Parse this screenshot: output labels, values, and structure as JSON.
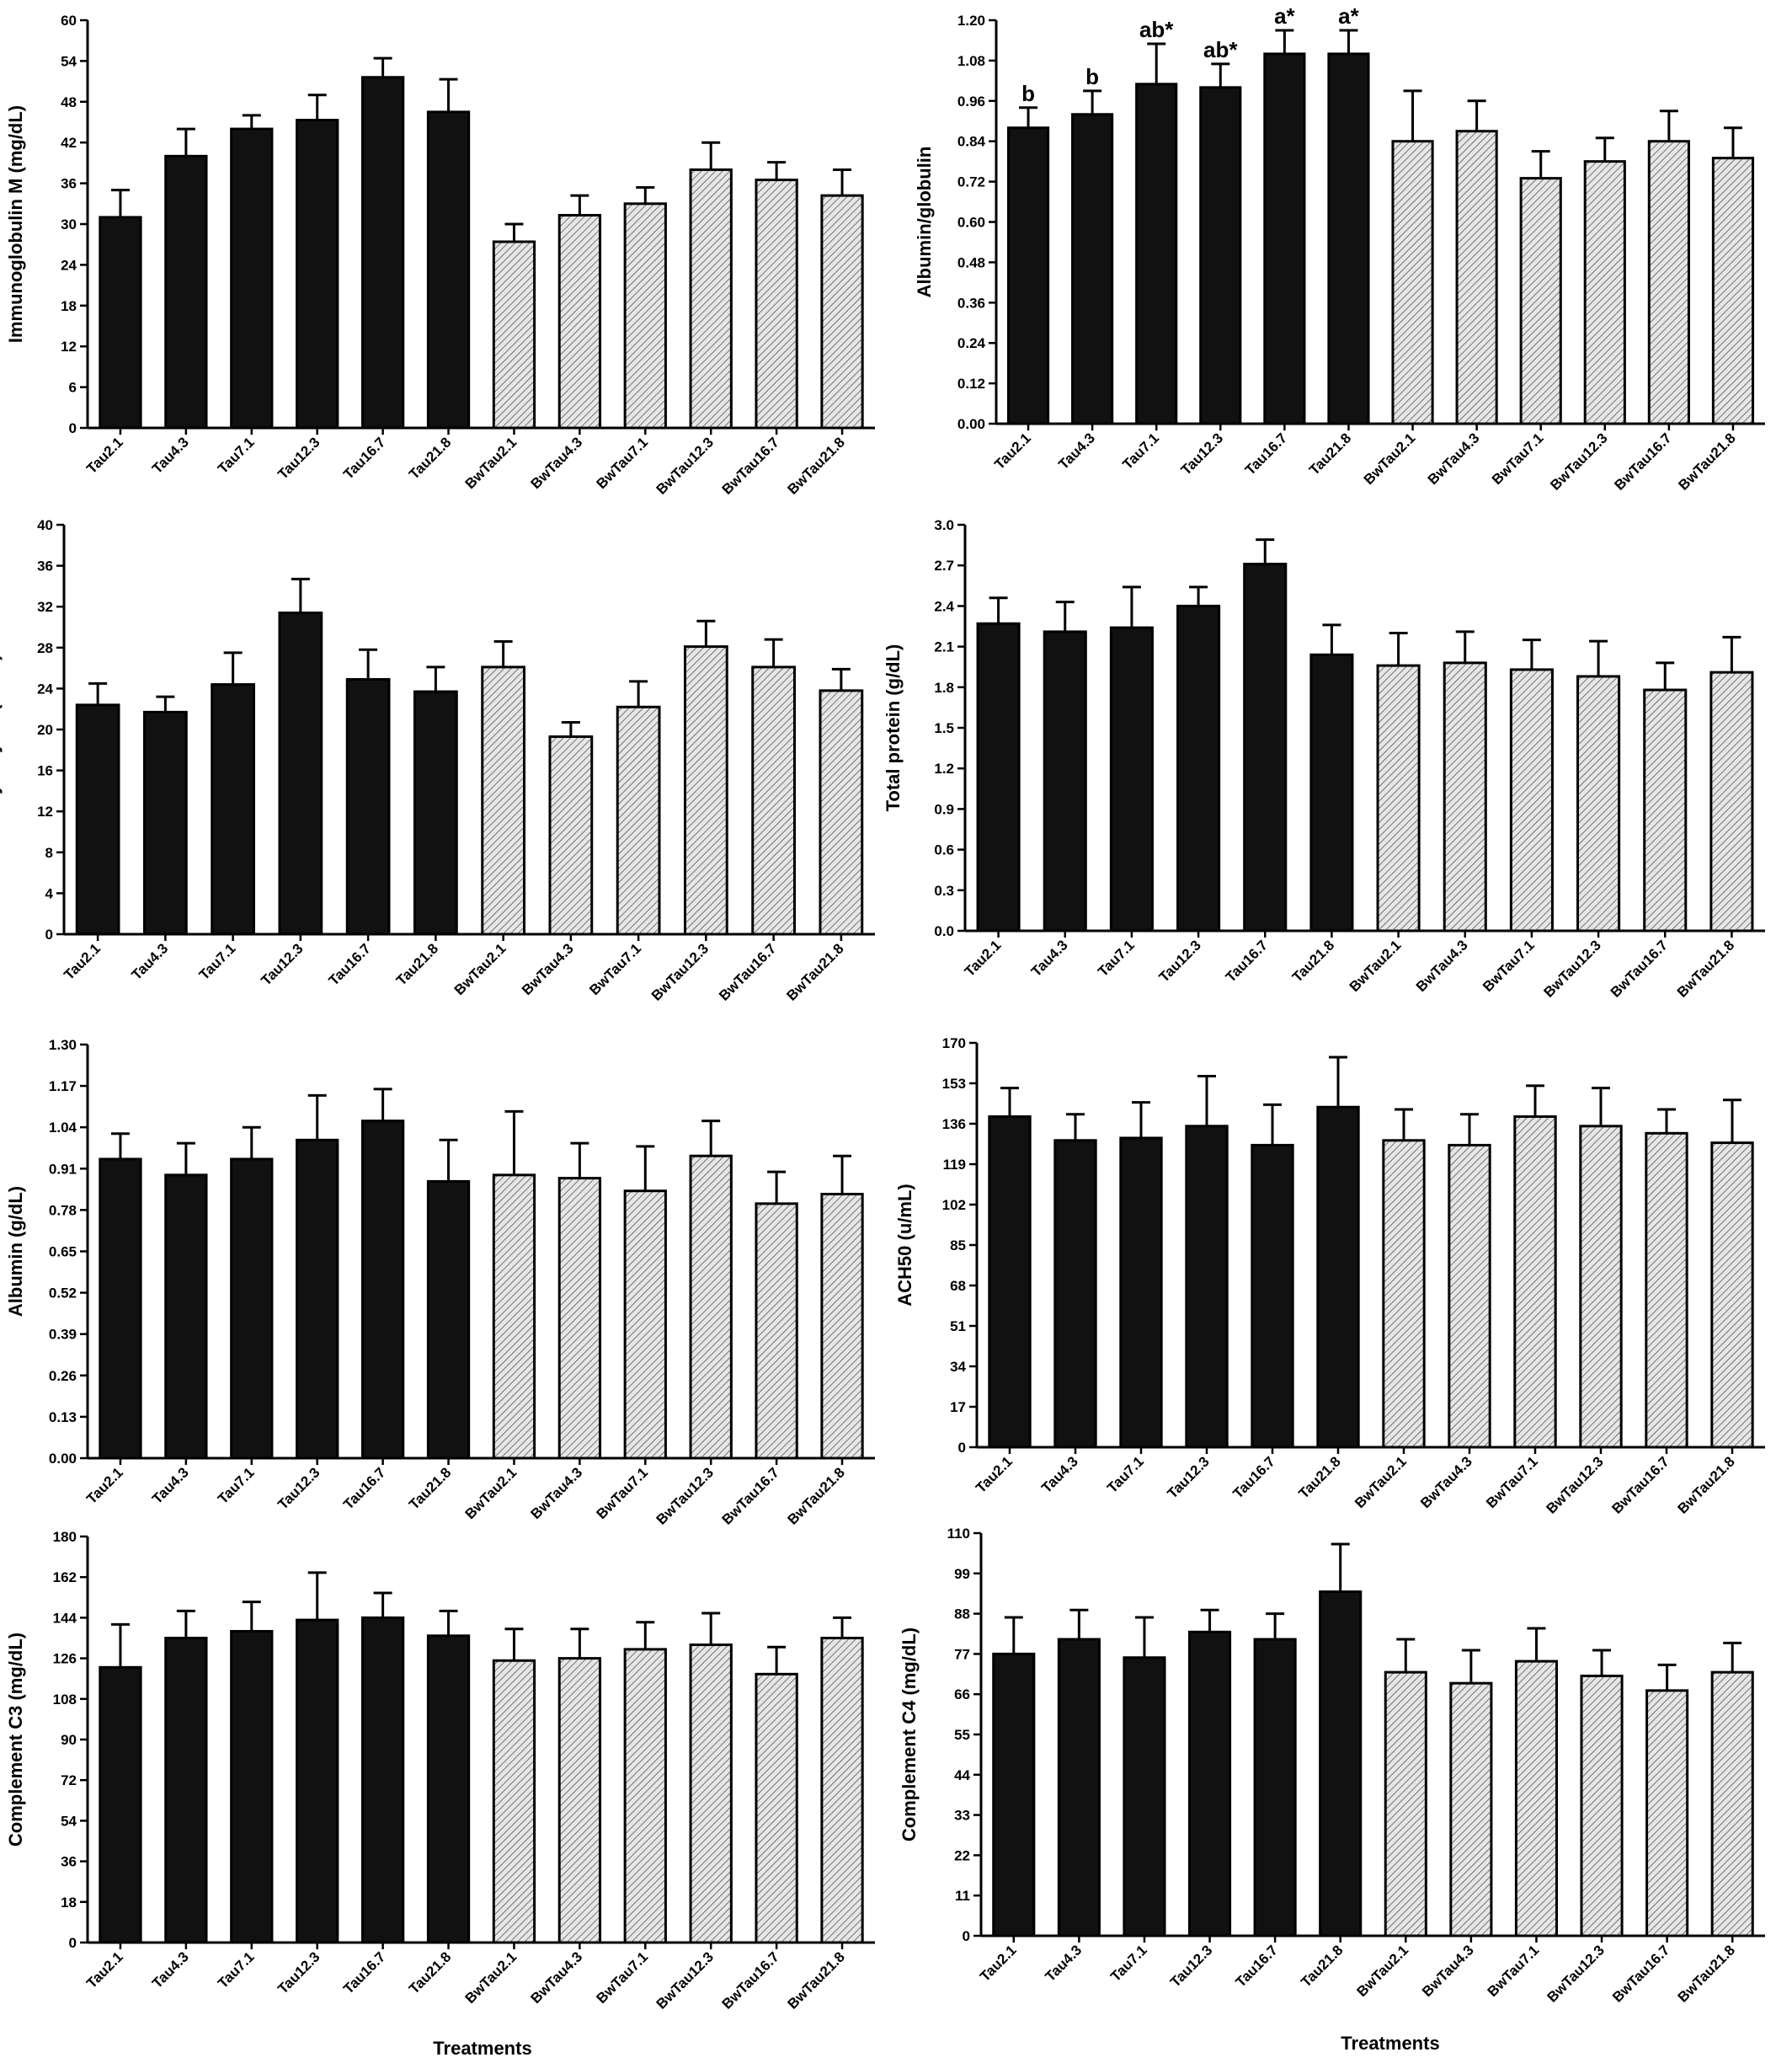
{
  "colors": {
    "tau_fill": "#111111",
    "bwtau_fill": "#e6e6e6",
    "bwtau_hatch": "#555555",
    "stroke": "#000000"
  },
  "xlabel": "Treatments",
  "chart_data": [
    {
      "type": "bar",
      "panel": "top-left",
      "ylabel": "Immunoglobulin M (mg/dL)",
      "ylim": [
        0,
        60
      ],
      "yticks": [
        "0",
        "6",
        "12",
        "18",
        "24",
        "30",
        "36",
        "42",
        "48",
        "54",
        "60"
      ],
      "categories": [
        "Tau2.1",
        "Tau4.3",
        "Tau7.1",
        "Tau12.3",
        "Tau16.7",
        "Tau21.8",
        "BwTau2.1",
        "BwTau4.3",
        "BwTau7.1",
        "BwTau12.3",
        "BwTau16.7",
        "BwTau21.8"
      ],
      "values": [
        31.0,
        40.0,
        44.0,
        45.3,
        51.6,
        46.5,
        27.4,
        31.3,
        33.0,
        38.0,
        36.5,
        34.2
      ],
      "errors": [
        4.0,
        4.0,
        2.0,
        3.7,
        2.8,
        4.8,
        2.6,
        2.9,
        2.4,
        4.0,
        2.6,
        3.8
      ],
      "sig_labels": []
    },
    {
      "type": "bar",
      "panel": "top-right",
      "ylabel": "Albumin/globulin",
      "ylim": [
        0,
        1.2
      ],
      "yticks": [
        "0.00",
        "0.12",
        "0.24",
        "0.36",
        "0.48",
        "0.60",
        "0.72",
        "0.84",
        "0.96",
        "1.08",
        "1.20"
      ],
      "categories": [
        "Tau2.1",
        "Tau4.3",
        "Tau7.1",
        "Tau12.3",
        "Tau16.7",
        "Tau21.8",
        "BwTau2.1",
        "BwTau4.3",
        "BwTau7.1",
        "BwTau12.3",
        "BwTau16.7",
        "BwTau21.8"
      ],
      "values": [
        0.88,
        0.92,
        1.01,
        1.0,
        1.1,
        1.1,
        0.84,
        0.87,
        0.73,
        0.78,
        0.84,
        0.79
      ],
      "errors": [
        0.06,
        0.07,
        0.12,
        0.07,
        0.07,
        0.07,
        0.15,
        0.09,
        0.08,
        0.07,
        0.09,
        0.09
      ],
      "sig_labels": [
        "b",
        "b",
        "ab*",
        "ab*",
        "a*",
        "a*",
        "",
        "",
        "",
        "",
        "",
        ""
      ]
    },
    {
      "type": "bar",
      "panel": "middle-left",
      "ylabel": "Lysozyme (u/mL)",
      "ylim": [
        0,
        40
      ],
      "yticks": [
        "0",
        "4",
        "8",
        "12",
        "16",
        "20",
        "24",
        "28",
        "32",
        "36",
        "40"
      ],
      "categories": [
        "Tau2.1",
        "Tau4.3",
        "Tau7.1",
        "Tau12.3",
        "Tau16.7",
        "Tau21.8",
        "BwTau2.1",
        "BwTau4.3",
        "BwTau7.1",
        "BwTau12.3",
        "BwTau16.7",
        "BwTau21.8"
      ],
      "values": [
        22.4,
        21.7,
        24.4,
        31.4,
        24.9,
        23.7,
        26.1,
        19.3,
        22.2,
        28.1,
        26.1,
        23.8
      ],
      "errors": [
        2.1,
        1.5,
        3.1,
        3.3,
        2.9,
        2.4,
        2.5,
        1.4,
        2.5,
        2.5,
        2.7,
        2.1
      ],
      "sig_labels": []
    },
    {
      "type": "bar",
      "panel": "middle-right",
      "ylabel": "Total protein (g/dL)",
      "ylim": [
        0,
        3.0
      ],
      "yticks": [
        "0.0",
        "0.3",
        "0.6",
        "0.9",
        "1.2",
        "1.5",
        "1.8",
        "2.1",
        "2.4",
        "2.7",
        "3.0"
      ],
      "categories": [
        "Tau2.1",
        "Tau4.3",
        "Tau7.1",
        "Tau12.3",
        "Tau16.7",
        "Tau21.8",
        "BwTau2.1",
        "BwTau4.3",
        "BwTau7.1",
        "BwTau12.3",
        "BwTau16.7",
        "BwTau21.8"
      ],
      "values": [
        2.27,
        2.21,
        2.24,
        2.4,
        2.71,
        2.04,
        1.96,
        1.98,
        1.93,
        1.88,
        1.78,
        1.91
      ],
      "errors": [
        0.19,
        0.22,
        0.3,
        0.14,
        0.18,
        0.22,
        0.24,
        0.23,
        0.22,
        0.26,
        0.2,
        0.26
      ],
      "sig_labels": []
    },
    {
      "type": "bar",
      "panel": "lower-left",
      "ylabel": "Albumin (g/dL)",
      "ylim": [
        0,
        1.3
      ],
      "yticks": [
        "0.00",
        "0.13",
        "0.26",
        "0.39",
        "0.52",
        "0.65",
        "0.78",
        "0.91",
        "1.04",
        "1.17",
        "1.30"
      ],
      "categories": [
        "Tau2.1",
        "Tau4.3",
        "Tau7.1",
        "Tau12.3",
        "Tau16.7",
        "Tau21.8",
        "BwTau2.1",
        "BwTau4.3",
        "BwTau7.1",
        "BwTau12.3",
        "BwTau16.7",
        "BwTau21.8"
      ],
      "values": [
        0.94,
        0.89,
        0.94,
        1.0,
        1.06,
        0.87,
        0.89,
        0.88,
        0.84,
        0.95,
        0.8,
        0.83
      ],
      "errors": [
        0.08,
        0.1,
        0.1,
        0.14,
        0.1,
        0.13,
        0.2,
        0.11,
        0.14,
        0.11,
        0.1,
        0.12
      ],
      "sig_labels": []
    },
    {
      "type": "bar",
      "panel": "lower-right",
      "ylabel": "ACH50 (u/mL)",
      "ylim": [
        0,
        170
      ],
      "yticks": [
        "0",
        "17",
        "34",
        "51",
        "68",
        "85",
        "102",
        "119",
        "136",
        "153",
        "170"
      ],
      "categories": [
        "Tau2.1",
        "Tau4.3",
        "Tau7.1",
        "Tau12.3",
        "Tau16.7",
        "Tau21.8",
        "BwTau2.1",
        "BwTau4.3",
        "BwTau7.1",
        "BwTau12.3",
        "BwTau16.7",
        "BwTau21.8"
      ],
      "values": [
        139,
        129,
        130,
        135,
        127,
        143,
        129,
        127,
        139,
        135,
        132,
        128
      ],
      "errors": [
        12,
        11,
        15,
        21,
        17,
        21,
        13,
        13,
        13,
        16,
        10,
        18
      ],
      "sig_labels": []
    },
    {
      "type": "bar",
      "panel": "bottom-left",
      "ylabel": "Complement C3 (mg/dL)",
      "ylim": [
        0,
        180
      ],
      "yticks": [
        "0",
        "18",
        "36",
        "54",
        "72",
        "90",
        "108",
        "126",
        "144",
        "162",
        "180"
      ],
      "categories": [
        "Tau2.1",
        "Tau4.3",
        "Tau7.1",
        "Tau12.3",
        "Tau16.7",
        "Tau21.8",
        "BwTau2.1",
        "BwTau4.3",
        "BwTau7.1",
        "BwTau12.3",
        "BwTau16.7",
        "BwTau21.8"
      ],
      "values": [
        122,
        135,
        138,
        143,
        144,
        136,
        125,
        126,
        130,
        132,
        119,
        135
      ],
      "errors": [
        19,
        12,
        13,
        21,
        11,
        11,
        14,
        13,
        12,
        14,
        12,
        9
      ],
      "sig_labels": []
    },
    {
      "type": "bar",
      "panel": "bottom-right",
      "ylabel": "Complement C4 (mg/dL)",
      "ylim": [
        0,
        110
      ],
      "yticks": [
        "0",
        "11",
        "22",
        "33",
        "44",
        "55",
        "66",
        "77",
        "88",
        "99",
        "110"
      ],
      "categories": [
        "Tau2.1",
        "Tau4.3",
        "Tau7.1",
        "Tau12.3",
        "Tau16.7",
        "Tau21.8",
        "BwTau2.1",
        "BwTau4.3",
        "BwTau7.1",
        "BwTau12.3",
        "BwTau16.7",
        "BwTau21.8"
      ],
      "values": [
        77,
        81,
        76,
        83,
        81,
        94,
        72,
        69,
        75,
        71,
        67,
        72
      ],
      "errors": [
        10,
        8,
        11,
        6,
        7,
        13,
        9,
        9,
        9,
        7,
        7,
        8
      ],
      "sig_labels": []
    }
  ]
}
